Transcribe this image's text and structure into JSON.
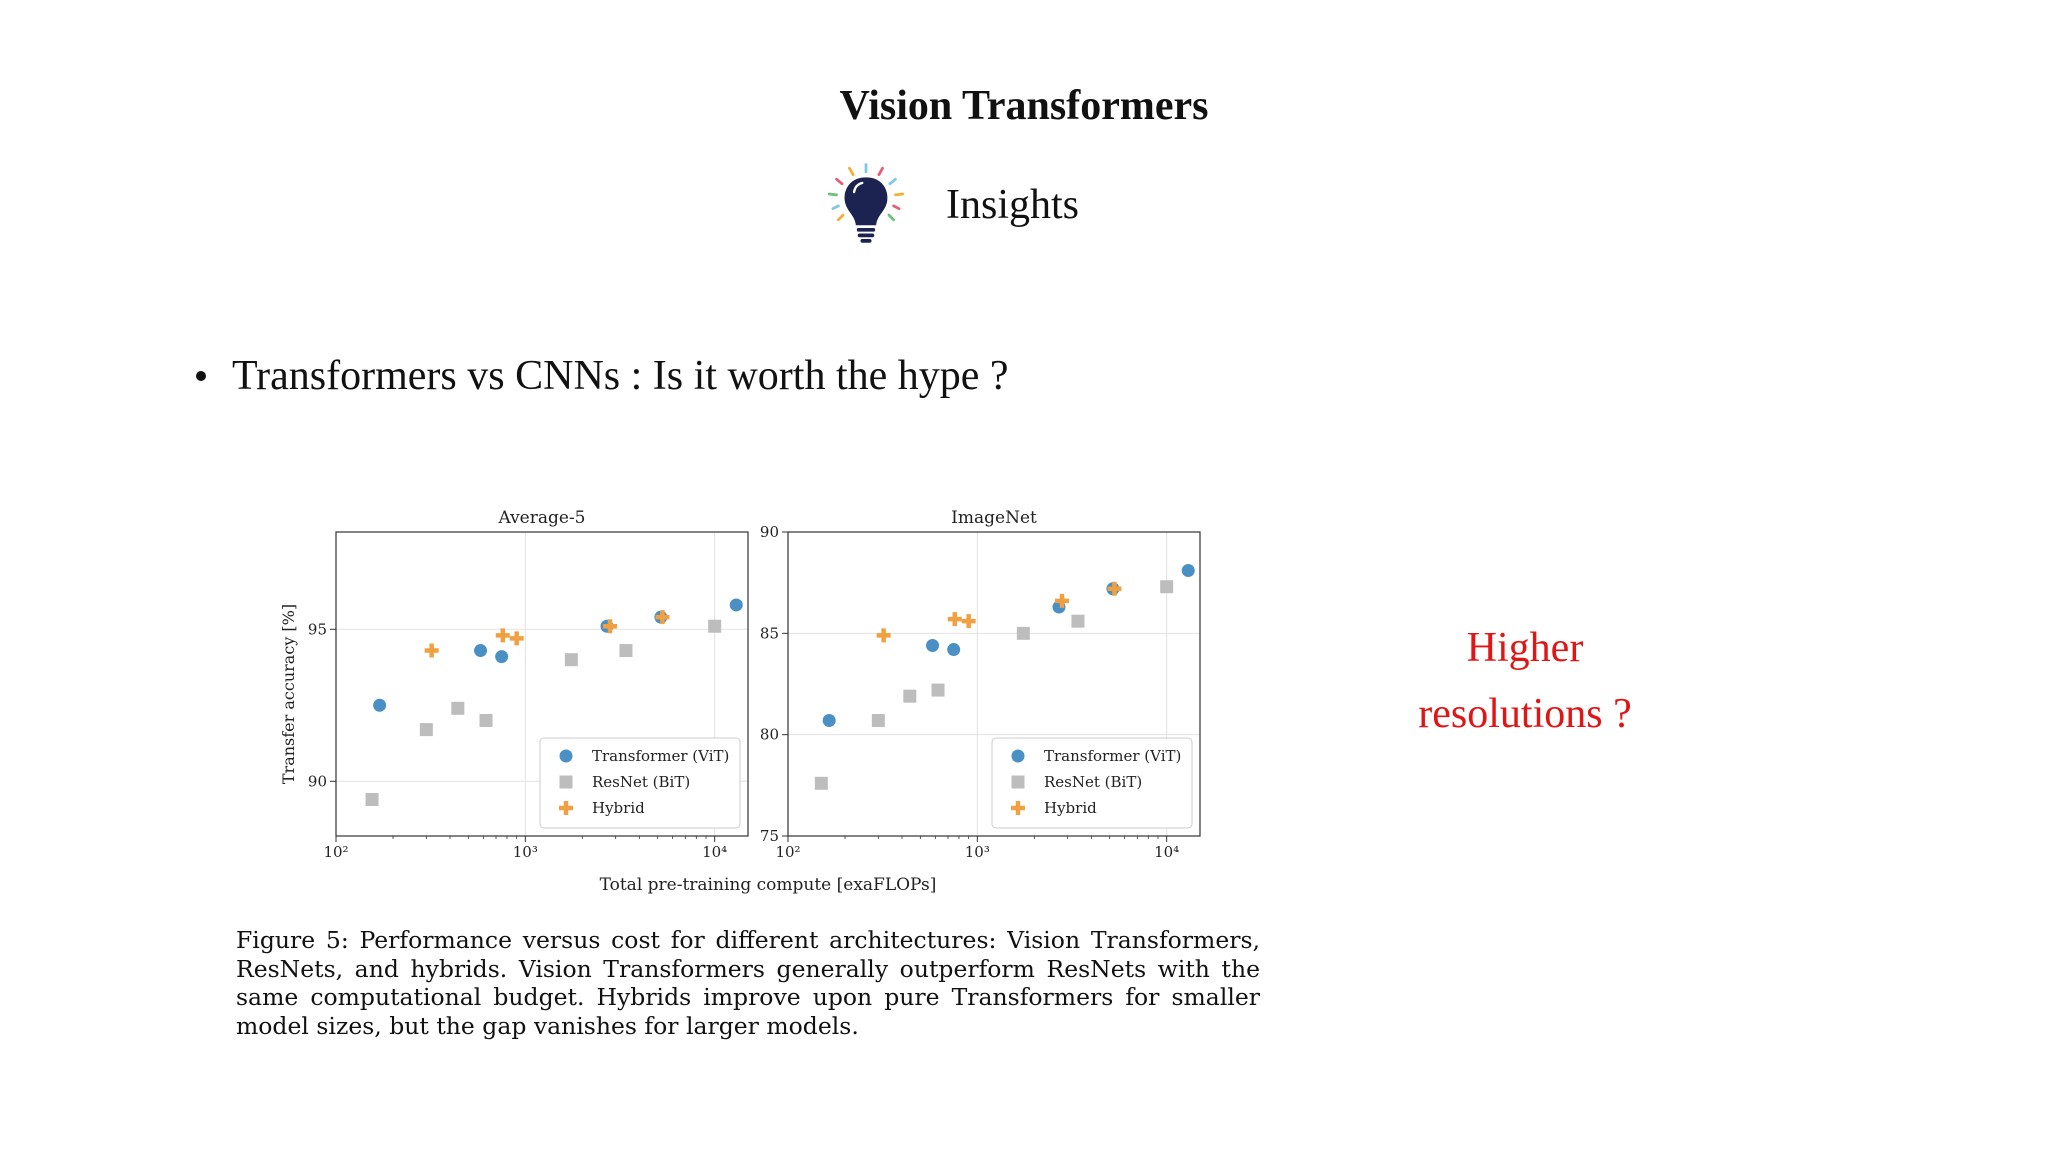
{
  "slide": {
    "title": "Vision Transformers",
    "subtitle": "Insights",
    "bullet": "Transformers vs CNNs : Is it worth the hype ?",
    "aside_line1": "Higher",
    "aside_line2": "resolutions ?",
    "caption": "Figure 5: Performance versus cost for different architectures: Vision Transformers, ResNets, and hybrids. Vision Transformers generally outperform ResNets with the same computational budget. Hybrids improve upon pure Transformers for smaller model sizes, but the gap vanishes for larger models.",
    "icon": "lightbulb-icon"
  },
  "shared_xlabel": "Total pre-training compute [exaFLOPs]",
  "chart_data": [
    {
      "type": "scatter",
      "title": "Average-5",
      "xlabel": "Total pre-training compute [exaFLOPs]",
      "ylabel": "Transfer accuracy [%]",
      "x_scale": "log",
      "xlim": [
        100,
        15000
      ],
      "ylim": [
        88.2,
        98.2
      ],
      "x_ticks": [
        100,
        1000,
        10000
      ],
      "x_tick_labels": [
        "10²",
        "10³",
        "10⁴"
      ],
      "y_ticks": [
        90,
        95
      ],
      "y_tick_labels": [
        "90",
        "95"
      ],
      "grid": true,
      "legend_position": "lower-right",
      "series": [
        {
          "name": "Transformer (ViT)",
          "marker": "circle",
          "color": "#4a90c4",
          "points": [
            [
              170,
              92.5
            ],
            [
              580,
              94.3
            ],
            [
              750,
              94.1
            ],
            [
              2700,
              95.1
            ],
            [
              5200,
              95.4
            ],
            [
              13000,
              95.8
            ]
          ]
        },
        {
          "name": "ResNet (BiT)",
          "marker": "square",
          "color": "#bdbdbd",
          "points": [
            [
              155,
              89.4
            ],
            [
              300,
              91.7
            ],
            [
              440,
              92.4
            ],
            [
              620,
              92.0
            ],
            [
              1750,
              94.0
            ],
            [
              3400,
              94.3
            ],
            [
              10000,
              95.1
            ]
          ]
        },
        {
          "name": "Hybrid",
          "marker": "plus",
          "color": "#f0a040",
          "points": [
            [
              320,
              94.3
            ],
            [
              760,
              94.8
            ],
            [
              900,
              94.7
            ],
            [
              2800,
              95.1
            ],
            [
              5300,
              95.4
            ]
          ]
        }
      ]
    },
    {
      "type": "scatter",
      "title": "ImageNet",
      "xlabel": "Total pre-training compute [exaFLOPs]",
      "ylabel": "",
      "x_scale": "log",
      "xlim": [
        100,
        15000
      ],
      "ylim": [
        75,
        90
      ],
      "x_ticks": [
        100,
        1000,
        10000
      ],
      "x_tick_labels": [
        "10²",
        "10³",
        "10⁴"
      ],
      "y_ticks": [
        75,
        80,
        85,
        90
      ],
      "y_tick_labels": [
        "75",
        "80",
        "85",
        "90"
      ],
      "grid": true,
      "legend_position": "lower-right",
      "series": [
        {
          "name": "Transformer (ViT)",
          "marker": "circle",
          "color": "#4a90c4",
          "points": [
            [
              165,
              80.7
            ],
            [
              580,
              84.4
            ],
            [
              750,
              84.2
            ],
            [
              2700,
              86.3
            ],
            [
              5200,
              87.2
            ],
            [
              13000,
              88.1
            ]
          ]
        },
        {
          "name": "ResNet (BiT)",
          "marker": "square",
          "color": "#bdbdbd",
          "points": [
            [
              150,
              77.6
            ],
            [
              300,
              80.7
            ],
            [
              440,
              81.9
            ],
            [
              620,
              82.2
            ],
            [
              1750,
              85.0
            ],
            [
              3400,
              85.6
            ],
            [
              10000,
              87.3
            ]
          ]
        },
        {
          "name": "Hybrid",
          "marker": "plus",
          "color": "#f0a040",
          "points": [
            [
              320,
              84.9
            ],
            [
              760,
              85.7
            ],
            [
              900,
              85.6
            ],
            [
              2800,
              86.6
            ],
            [
              5300,
              87.2
            ]
          ]
        }
      ]
    }
  ]
}
